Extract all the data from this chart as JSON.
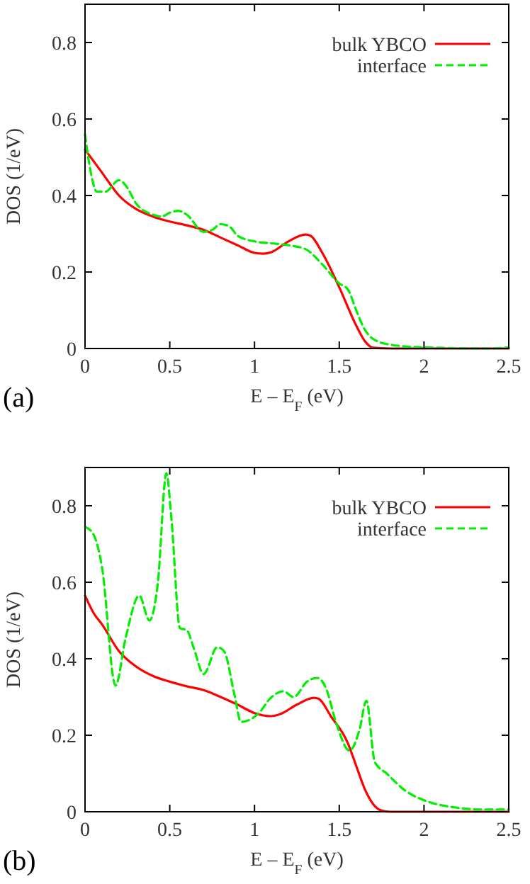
{
  "chart_data": [
    {
      "type": "line",
      "xlabel": "E – E$_{F}$ (eV)",
      "ylabel": "DOS (1/eV)",
      "annotations": [
        "(a)"
      ],
      "xlim": [
        0,
        2.5
      ],
      "ylim": [
        0,
        0.9
      ],
      "xticks": [
        0,
        0.5,
        1,
        1.5,
        2,
        2.5
      ],
      "yticks": [
        0,
        0.2,
        0.4,
        0.6,
        0.8
      ],
      "legend": "top right",
      "grid": false,
      "series": [
        {
          "name": "bulk YBCO",
          "color": "#ff0000",
          "line_style": "solid",
          "x": [
            0,
            0.1,
            0.2,
            0.3,
            0.4,
            0.5,
            0.6,
            0.7,
            0.8,
            0.9,
            1.0,
            1.05,
            1.1,
            1.2,
            1.3,
            1.33,
            1.4,
            1.5,
            1.6,
            1.65,
            1.7,
            1.8,
            2.5
          ],
          "values": [
            0.52,
            0.46,
            0.4,
            0.365,
            0.345,
            0.332,
            0.322,
            0.31,
            0.29,
            0.27,
            0.25,
            0.248,
            0.252,
            0.28,
            0.298,
            0.295,
            0.25,
            0.16,
            0.06,
            0.02,
            0.002,
            0,
            0
          ]
        },
        {
          "name": "interface",
          "color": "#00ee00",
          "line_style": "dashed",
          "x": [
            0,
            0.03,
            0.07,
            0.12,
            0.2,
            0.25,
            0.3,
            0.4,
            0.45,
            0.5,
            0.55,
            0.6,
            0.7,
            0.75,
            0.8,
            0.85,
            0.9,
            1.0,
            1.1,
            1.2,
            1.3,
            1.4,
            1.5,
            1.55,
            1.6,
            1.65,
            1.7,
            1.8,
            2.0,
            2.4,
            2.5
          ],
          "values": [
            0.56,
            0.47,
            0.41,
            0.41,
            0.44,
            0.42,
            0.38,
            0.35,
            0.345,
            0.355,
            0.36,
            0.35,
            0.305,
            0.31,
            0.325,
            0.32,
            0.295,
            0.28,
            0.275,
            0.27,
            0.26,
            0.22,
            0.17,
            0.155,
            0.1,
            0.05,
            0.025,
            0.01,
            0.003,
            0,
            0.003
          ]
        }
      ]
    },
    {
      "type": "line",
      "xlabel": "E – E$_{F}$ (eV)",
      "ylabel": "DOS (1/eV)",
      "annotations": [
        "(b)"
      ],
      "xlim": [
        0,
        2.5
      ],
      "ylim": [
        0,
        0.9
      ],
      "xticks": [
        0,
        0.5,
        1,
        1.5,
        2,
        2.5
      ],
      "yticks": [
        0,
        0.2,
        0.4,
        0.6,
        0.8
      ],
      "legend": "top right",
      "grid": false,
      "series": [
        {
          "name": "bulk YBCO",
          "color": "#ff0000",
          "line_style": "solid",
          "x": [
            0,
            0.05,
            0.1,
            0.2,
            0.3,
            0.4,
            0.5,
            0.6,
            0.7,
            0.8,
            0.9,
            1.0,
            1.1,
            1.15,
            1.25,
            1.35,
            1.38,
            1.45,
            1.55,
            1.6,
            1.65,
            1.7,
            1.75,
            1.8,
            2.5
          ],
          "values": [
            0.565,
            0.52,
            0.49,
            0.42,
            0.38,
            0.355,
            0.34,
            0.328,
            0.318,
            0.3,
            0.28,
            0.258,
            0.25,
            0.255,
            0.28,
            0.298,
            0.295,
            0.25,
            0.18,
            0.12,
            0.06,
            0.02,
            0.003,
            0,
            0
          ]
        },
        {
          "name": "interface",
          "color": "#00ee00",
          "line_style": "dashed",
          "x": [
            0,
            0.05,
            0.1,
            0.18,
            0.24,
            0.32,
            0.38,
            0.43,
            0.48,
            0.51,
            0.56,
            0.6,
            0.64,
            0.7,
            0.78,
            0.82,
            0.88,
            0.92,
            0.99,
            1.03,
            1.09,
            1.17,
            1.23,
            1.31,
            1.37,
            1.42,
            1.48,
            1.56,
            1.62,
            1.66,
            1.71,
            1.78,
            1.89,
            2.0,
            2.17,
            2.34,
            2.5
          ],
          "values": [
            0.745,
            0.725,
            0.64,
            0.33,
            0.455,
            0.565,
            0.5,
            0.6,
            0.885,
            0.765,
            0.48,
            0.475,
            0.43,
            0.36,
            0.43,
            0.42,
            0.31,
            0.235,
            0.245,
            0.26,
            0.295,
            0.315,
            0.3,
            0.34,
            0.35,
            0.325,
            0.235,
            0.16,
            0.215,
            0.29,
            0.13,
            0.1,
            0.055,
            0.03,
            0.012,
            0.006,
            0.006
          ]
        }
      ]
    }
  ]
}
